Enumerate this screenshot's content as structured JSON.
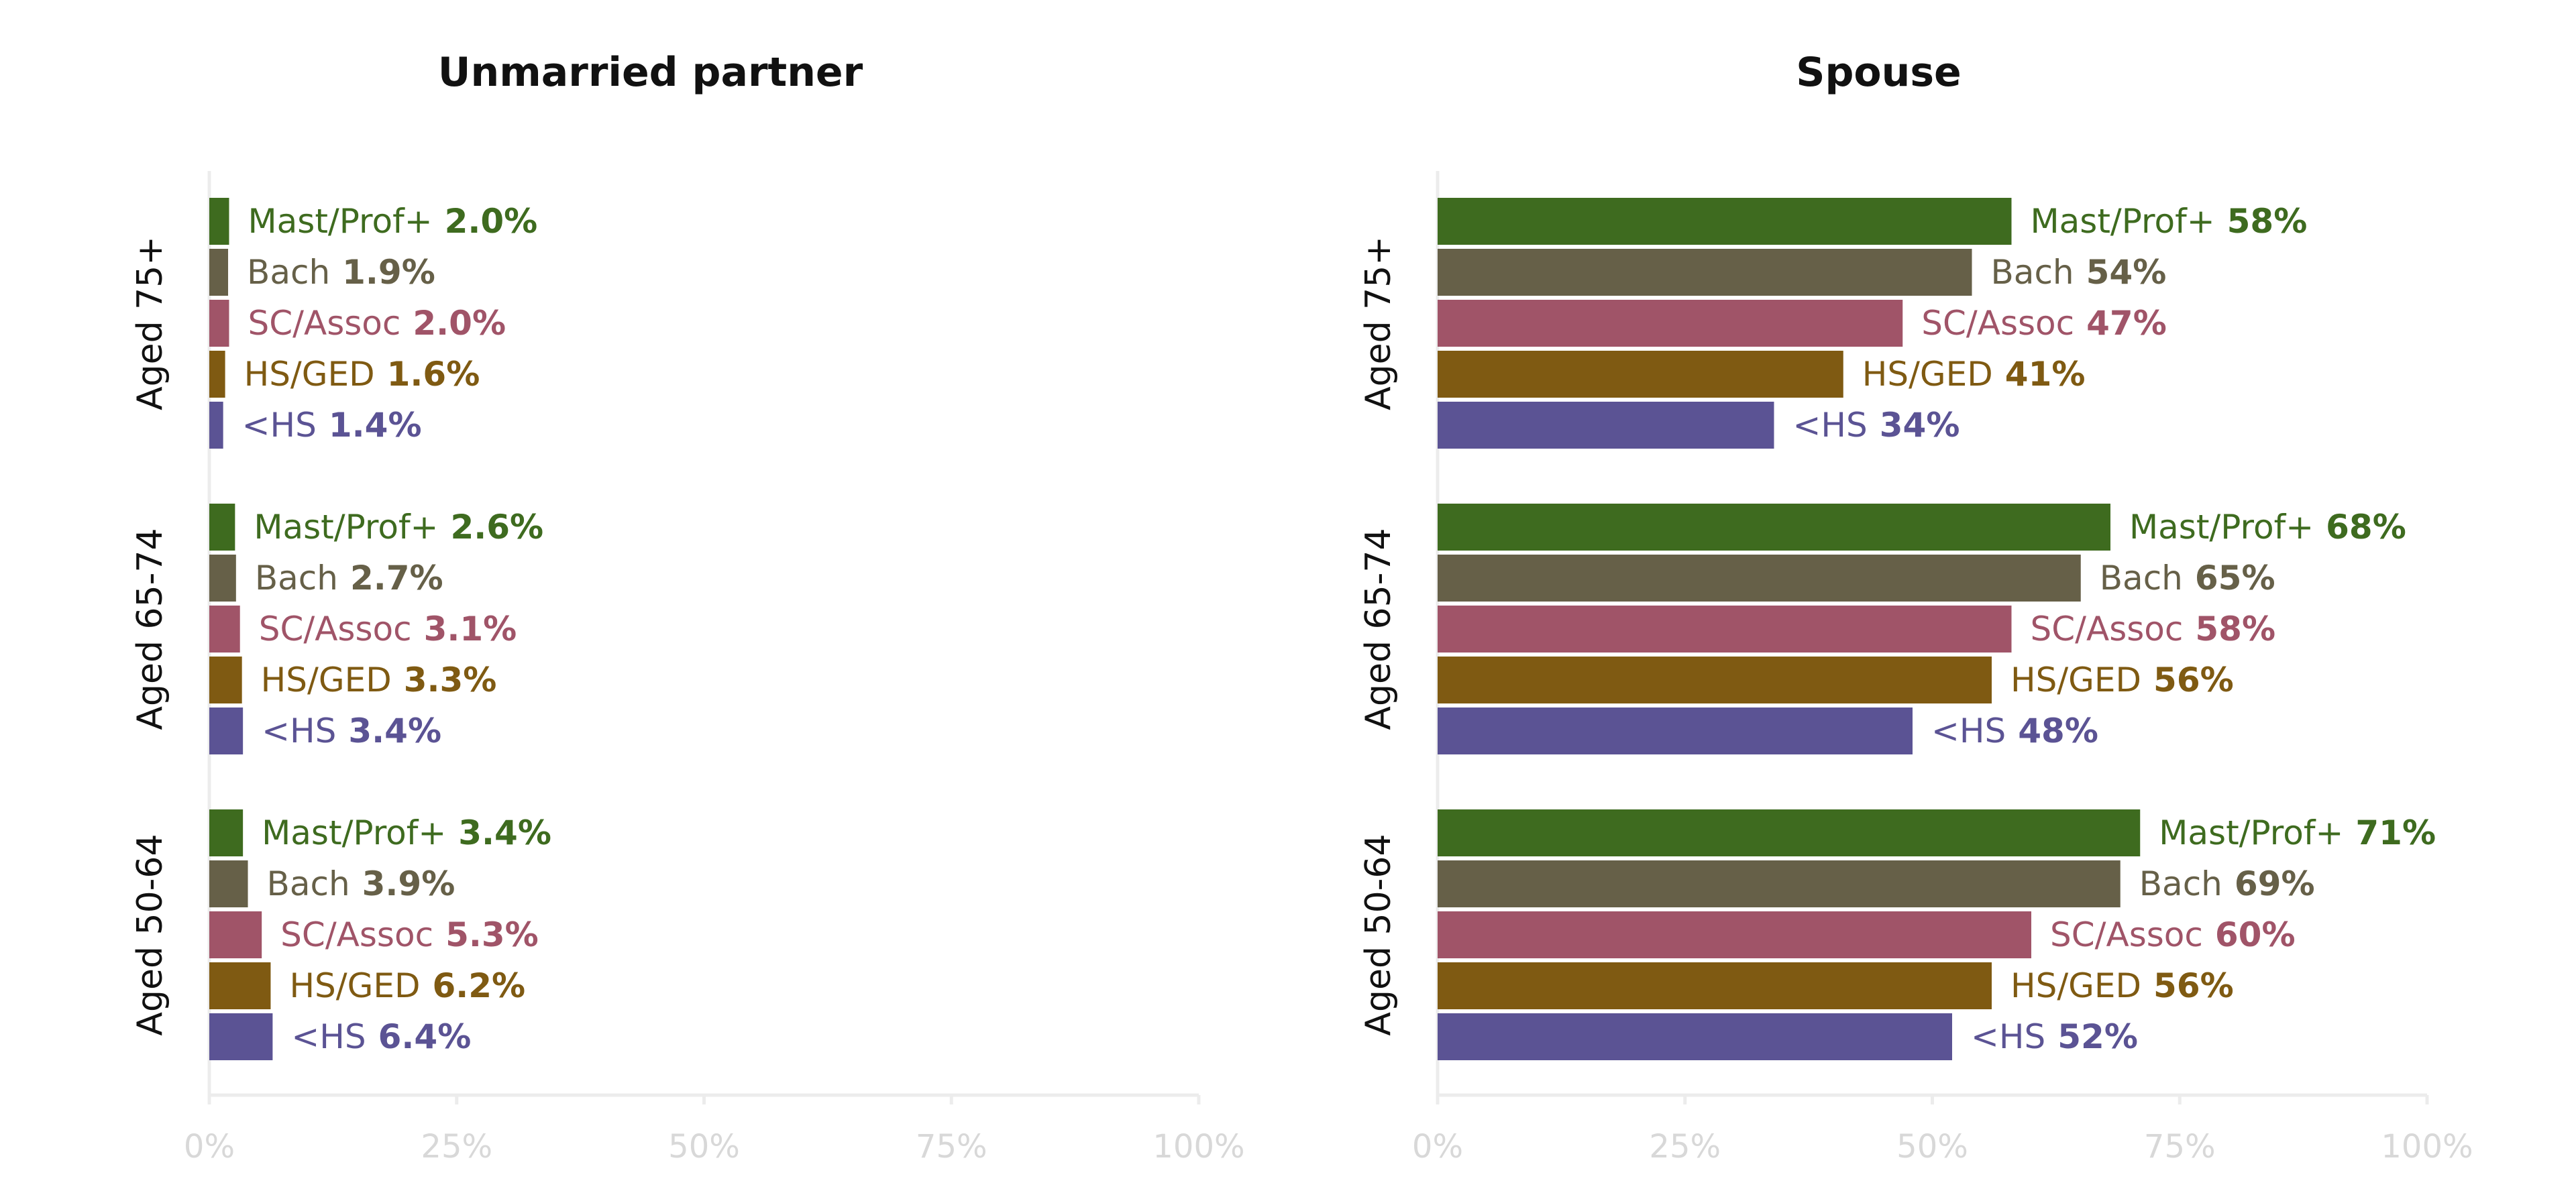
{
  "chart_data": {
    "type": "bar",
    "orientation": "horizontal",
    "xlim": [
      0,
      100
    ],
    "x_ticks": [
      "0%",
      "25%",
      "50%",
      "75%",
      "100%"
    ],
    "grid": false,
    "legend": "none",
    "colors": {
      "Mast/Prof+": "#3e6b1f",
      "Bach": "#666048",
      "SC/Assoc": "#a05468",
      "HS/GED": "#7f5a12",
      "<HS": "#5b5394"
    },
    "panels": [
      {
        "title": "Unmarried partner",
        "groups": [
          {
            "label": "Aged 75+",
            "bars": [
              {
                "category": "Mast/Prof+",
                "value": 2.0,
                "value_label": "2.0%"
              },
              {
                "category": "Bach",
                "value": 1.9,
                "value_label": "1.9%"
              },
              {
                "category": "SC/Assoc",
                "value": 2.0,
                "value_label": "2.0%"
              },
              {
                "category": "HS/GED",
                "value": 1.6,
                "value_label": "1.6%"
              },
              {
                "category": "<HS",
                "value": 1.4,
                "value_label": "1.4%"
              }
            ]
          },
          {
            "label": "Aged 65-74",
            "bars": [
              {
                "category": "Mast/Prof+",
                "value": 2.6,
                "value_label": "2.6%"
              },
              {
                "category": "Bach",
                "value": 2.7,
                "value_label": "2.7%"
              },
              {
                "category": "SC/Assoc",
                "value": 3.1,
                "value_label": "3.1%"
              },
              {
                "category": "HS/GED",
                "value": 3.3,
                "value_label": "3.3%"
              },
              {
                "category": "<HS",
                "value": 3.4,
                "value_label": "3.4%"
              }
            ]
          },
          {
            "label": "Aged 50-64",
            "bars": [
              {
                "category": "Mast/Prof+",
                "value": 3.4,
                "value_label": "3.4%"
              },
              {
                "category": "Bach",
                "value": 3.9,
                "value_label": "3.9%"
              },
              {
                "category": "SC/Assoc",
                "value": 5.3,
                "value_label": "5.3%"
              },
              {
                "category": "HS/GED",
                "value": 6.2,
                "value_label": "6.2%"
              },
              {
                "category": "<HS",
                "value": 6.4,
                "value_label": "6.4%"
              }
            ]
          }
        ]
      },
      {
        "title": "Spouse",
        "groups": [
          {
            "label": "Aged 75+",
            "bars": [
              {
                "category": "Mast/Prof+",
                "value": 58,
                "value_label": "58%"
              },
              {
                "category": "Bach",
                "value": 54,
                "value_label": "54%"
              },
              {
                "category": "SC/Assoc",
                "value": 47,
                "value_label": "47%"
              },
              {
                "category": "HS/GED",
                "value": 41,
                "value_label": "41%"
              },
              {
                "category": "<HS",
                "value": 34,
                "value_label": "34%"
              }
            ]
          },
          {
            "label": "Aged 65-74",
            "bars": [
              {
                "category": "Mast/Prof+",
                "value": 68,
                "value_label": "68%"
              },
              {
                "category": "Bach",
                "value": 65,
                "value_label": "65%"
              },
              {
                "category": "SC/Assoc",
                "value": 58,
                "value_label": "58%"
              },
              {
                "category": "HS/GED",
                "value": 56,
                "value_label": "56%"
              },
              {
                "category": "<HS",
                "value": 48,
                "value_label": "48%"
              }
            ]
          },
          {
            "label": "Aged 50-64",
            "bars": [
              {
                "category": "Mast/Prof+",
                "value": 71,
                "value_label": "71%"
              },
              {
                "category": "Bach",
                "value": 69,
                "value_label": "69%"
              },
              {
                "category": "SC/Assoc",
                "value": 60,
                "value_label": "60%"
              },
              {
                "category": "HS/GED",
                "value": 56,
                "value_label": "56%"
              },
              {
                "category": "<HS",
                "value": 52,
                "value_label": "52%"
              }
            ]
          }
        ]
      }
    ]
  }
}
